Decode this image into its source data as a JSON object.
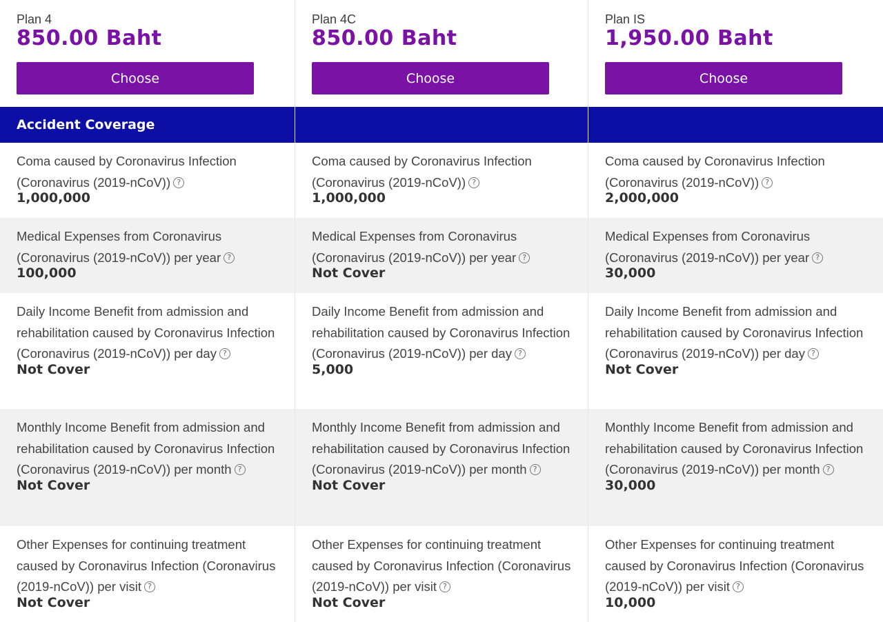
{
  "plans": [
    {
      "name": "Plan 4",
      "price": "850.00 Baht",
      "button": "Choose"
    },
    {
      "name": "Plan 4C",
      "price": "850.00 Baht",
      "button": "Choose"
    },
    {
      "name": "Plan IS",
      "price": "1,950.00 Baht",
      "button": "Choose"
    }
  ],
  "section": {
    "title": "Accident Coverage"
  },
  "benefits": [
    {
      "label": "Coma caused by Coronavirus Infection (Coronavirus (2019-nCoV))",
      "values": [
        "1,000,000",
        "1,000,000",
        "2,000,000"
      ]
    },
    {
      "label": "Medical Expenses from Coronavirus (Coronavirus (2019-nCoV)) per year",
      "values": [
        "100,000",
        "Not Cover",
        "30,000"
      ]
    },
    {
      "label": "Daily Income Benefit from admission and rehabilitation caused by Coronavirus Infection (Coronavirus (2019-nCoV)) per day",
      "values": [
        "Not Cover",
        "5,000",
        "Not Cover"
      ]
    },
    {
      "label": "Monthly Income Benefit from admission and rehabilitation caused by Coronavirus Infection (Coronavirus (2019-nCoV)) per month",
      "values": [
        "Not Cover",
        "Not Cover",
        "30,000"
      ]
    },
    {
      "label": "Other Expenses for continuing treatment caused by Coronavirus Infection (Coronavirus (2019-nCoV)) per visit",
      "values": [
        "Not Cover",
        "Not Cover",
        "10,000"
      ]
    }
  ],
  "icons": {
    "help": "question-circle-icon"
  },
  "colors": {
    "brand_purple": "#7b12a6",
    "section_blue": "#0d0ea4",
    "row_shade": "#f1f1f1"
  }
}
